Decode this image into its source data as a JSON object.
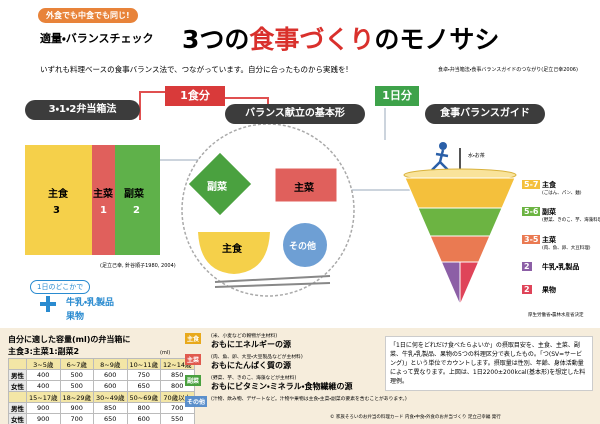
{
  "header": {
    "tag": "外食でも中食でも同じ!",
    "kicker": "適量・バランスチェック",
    "title_parts": [
      "3つの",
      "食事づくり",
      "のモノサシ"
    ],
    "subtitle": "いずれも料理ベースの食事バランス法で、つながっています。自分に合ったものから実践を!",
    "source": "食卓・弁当箱法・食事バランスガイドのつながり(足立己幸2006)"
  },
  "banners": {
    "bento": "3・1・2弁当箱法",
    "one_meal": "1食分",
    "basic": "バランス献立の基本形",
    "one_day": "1日分",
    "guide": "食事バランスガイド"
  },
  "bento": {
    "sections": [
      {
        "name": "主食",
        "ratio": "3"
      },
      {
        "name": "主菜",
        "ratio": "1"
      },
      {
        "name": "副菜",
        "ratio": "2"
      }
    ],
    "caption": "(足立己幸, 針谷順子1980, 2004)"
  },
  "plate": {
    "fukusai": "副菜",
    "shusai": "主菜",
    "shushoku": "主食",
    "other": "その他"
  },
  "extra": {
    "pill": "1日のどこかで",
    "plus": "+",
    "items": [
      "牛乳・乳製品",
      "果物"
    ]
  },
  "guide": {
    "top": "水・お茶",
    "layers": [
      {
        "sv": "5-7",
        "name": "主食",
        "note": "(ごはん、パン、麺)",
        "color": "#f4c03c"
      },
      {
        "sv": "5-6",
        "name": "副菜",
        "note": "(野菜、きのこ、芋、海藻料理)",
        "color": "#6cb442"
      },
      {
        "sv": "3-5",
        "name": "主菜",
        "note": "(肉、魚、卵、大豆料理)",
        "color": "#ea7a52"
      },
      {
        "sv": "2",
        "name": "牛乳・乳製品",
        "note": "",
        "color": "#8c5fa6"
      },
      {
        "sv": "2",
        "name": "果物",
        "note": "",
        "color": "#df4459"
      }
    ],
    "caption": "厚生労働省・農林水産省決定"
  },
  "bento_table": {
    "title": "自分に適した容量(ml)の弁当箱に",
    "ratio": "主食3:主菜1:副菜2",
    "unit": "(ml)",
    "groups": [
      {
        "headers": [
          "3~5歳",
          "6~7歳",
          "8~9歳",
          "10~11歳",
          "12~14歳"
        ],
        "rows": [
          {
            "label": "男性",
            "values": [
              400,
              500,
              600,
              750,
              850
            ]
          },
          {
            "label": "女性",
            "values": [
              400,
              500,
              600,
              650,
              800
            ]
          }
        ]
      },
      {
        "headers": [
          "15~17歳",
          "18~29歳",
          "30~49歳",
          "50~69歳",
          "70歳以上"
        ],
        "rows": [
          {
            "label": "男性",
            "values": [
              900,
              900,
              850,
              800,
              700
            ]
          },
          {
            "label": "女性",
            "values": [
              900,
              700,
              650,
              600,
              550
            ]
          }
        ]
      }
    ]
  },
  "legend": [
    {
      "tag": "主食",
      "note": "(米、小麦などの穀物が主材料)",
      "text": "おもにエネルギーの源",
      "color": "#e8a91c"
    },
    {
      "tag": "主菜",
      "note": "(肉、魚、卵、大豆・大豆製品などが主材料)",
      "text": "おもにたんぱく質の源",
      "color": "#e05a4e"
    },
    {
      "tag": "副菜",
      "note": "(野菜、芋、きのこ、海藻などが主材料)",
      "text": "おもにビタミン・ミネラル・食物繊維の源",
      "color": "#4aa13f"
    },
    {
      "tag": "その他",
      "note": "(汁物、飲み物、デザートなど。汁物や果物は主食・主菜・副菜の要素を含むことがあります。)",
      "text": "",
      "color": "#5b8fcb"
    }
  ],
  "explanation": "「1日に何をどれだけ食べたらよいか」の摂取目安を、主食、主菜、副菜、牛乳・乳製品、果物の5つの料理区分で表したもの。「つ(SV=サービング)」という単位でカウントします。摂取量は性別、年齢、身体活動量によって異なります。上図は、1日2200±200kcal(基本形)を想定した料理例。",
  "footer": "© 家族そろいのお弁当の料理カード 内食・中食・外食のお弁当づくり 足立己幸編 発行"
}
